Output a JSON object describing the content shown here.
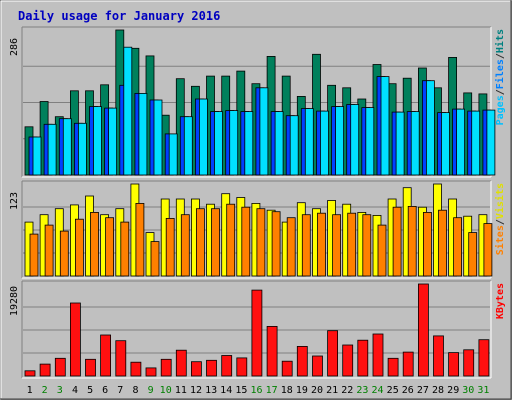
{
  "chart_data": {
    "title": "Daily usage for January 2016",
    "days": [
      "1",
      "2",
      "3",
      "4",
      "5",
      "6",
      "7",
      "8",
      "9",
      "10",
      "11",
      "12",
      "13",
      "14",
      "15",
      "16",
      "17",
      "18",
      "19",
      "20",
      "21",
      "22",
      "23",
      "24",
      "25",
      "26",
      "27",
      "28",
      "29",
      "30",
      "31"
    ],
    "weekend_days": [
      "2",
      "3",
      "9",
      "10",
      "16",
      "17",
      "23",
      "24",
      "30",
      "31"
    ],
    "panels": [
      {
        "type": "bar",
        "axis_label": "286",
        "ymax": 286,
        "legend": [
          {
            "text": "Pages",
            "color": "#00c0ff"
          },
          {
            "text": "/",
            "color": "#333333"
          },
          {
            "text": "Files",
            "color": "#0080ff"
          },
          {
            "text": "/",
            "color": "#333333"
          },
          {
            "text": "Hits",
            "color": "#008080"
          }
        ],
        "series": [
          {
            "name": "Hits",
            "color": "#00805c",
            "values": [
              95,
              145,
              115,
              166,
              166,
              178,
              286,
              250,
              235,
              118,
              190,
              175,
              195,
              195,
              205,
              180,
              234,
              195,
              155,
              238,
              177,
              172,
              150,
              218,
              180,
              191,
              211,
              172,
              232,
              162,
              160
            ]
          },
          {
            "name": "Files",
            "color": "#0040ff",
            "values": [
              75,
              100,
              111,
              102,
              135,
              132,
              177,
              161,
              148,
              81,
              115,
              150,
              125,
              127,
              125,
              172,
              125,
              117,
              131,
              126,
              135,
              139,
              133,
              194,
              124,
              125,
              186,
              123,
              130,
              126,
              128
            ]
          },
          {
            "name": "Pages",
            "color": "#00e0ff",
            "values": [
              75,
              100,
              111,
              102,
              135,
              132,
              252,
              161,
              148,
              81,
              115,
              150,
              125,
              127,
              125,
              172,
              125,
              117,
              131,
              126,
              135,
              139,
              133,
              194,
              124,
              125,
              186,
              123,
              130,
              126,
              128
            ]
          }
        ]
      },
      {
        "type": "bar",
        "axis_label": "123",
        "ymax": 123,
        "legend": [
          {
            "text": "Sites",
            "color": "#ff8000"
          },
          {
            "text": "/",
            "color": "#333333"
          },
          {
            "text": "Visits",
            "color": "#e0e000"
          }
        ],
        "series": [
          {
            "name": "Visits",
            "color": "#ffff00",
            "values": [
              72,
              82,
              90,
              95,
              107,
              82,
              90,
              123,
              58,
              103,
              103,
              103,
              96,
              110,
              105,
              97,
              88,
              72,
              98,
              90,
              101,
              96,
              85,
              81,
              103,
              118,
              92,
              123,
              103,
              80,
              82
            ]
          },
          {
            "name": "Sites",
            "color": "#ff8000",
            "values": [
              56,
              68,
              60,
              76,
              85,
              78,
              72,
              97,
              46,
              77,
              82,
              90,
              90,
              96,
              92,
              90,
              86,
              78,
              82,
              84,
              82,
              84,
              82,
              68,
              92,
              93,
              85,
              88,
              78,
              58,
              70
            ]
          }
        ]
      },
      {
        "type": "bar",
        "axis_label": "19280",
        "ymax": 19280,
        "legend": [
          {
            "text": "KBytes",
            "color": "#ff0000"
          }
        ],
        "series": [
          {
            "name": "KBytes",
            "color": "#ff1010",
            "values": [
              1100,
              2500,
              3700,
              15300,
              3500,
              8600,
              7400,
              2900,
              1700,
              3500,
              5400,
              3000,
              3300,
              4300,
              3800,
              18000,
              10400,
              3100,
              6200,
              4200,
              9500,
              6500,
              7500,
              8800,
              3700,
              5000,
              19280,
              8400,
              4900,
              5500,
              7600
            ]
          }
        ]
      }
    ]
  }
}
